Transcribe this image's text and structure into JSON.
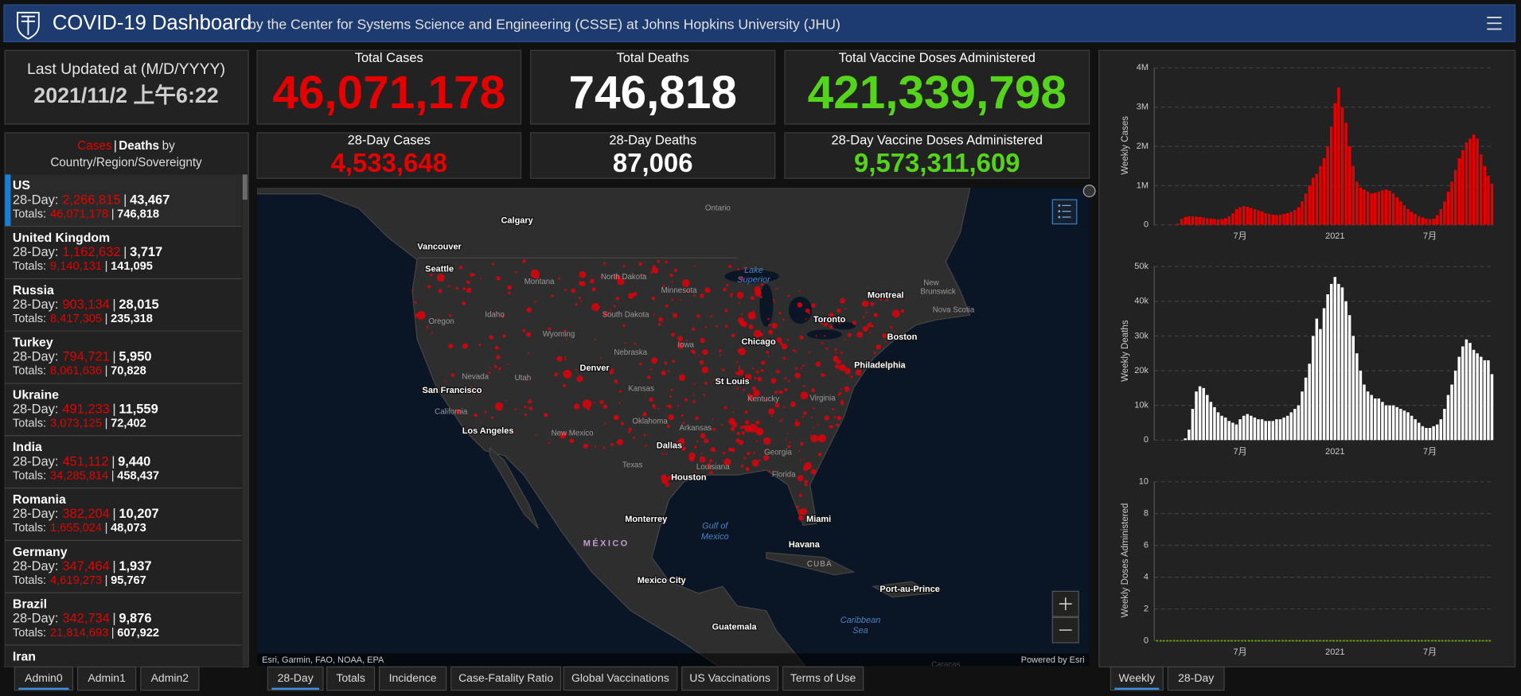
{
  "header": {
    "title": "COVID-19 Dashboard",
    "subtitle": "by the Center for Systems Science and Engineering (CSSE) at Johns Hopkins University (JHU)"
  },
  "last_updated": {
    "label": "Last Updated at (M/D/YYYY)",
    "value": "2021/11/2 上午6:22"
  },
  "stats": [
    {
      "label": "Total Cases",
      "value": "46,071,178"
    },
    {
      "label": "Total Deaths",
      "value": "746,818"
    },
    {
      "label": "Total Vaccine Doses Administered",
      "value": "421,339,798"
    },
    {
      "label": "28-Day Cases",
      "value": "4,533,648"
    },
    {
      "label": "28-Day Deaths",
      "value": "87,006"
    },
    {
      "label": "28-Day Vaccine Doses Administered",
      "value": "9,573,311,609"
    }
  ],
  "country_list": {
    "cases": "Cases",
    "separator": "|",
    "deaths": "Deaths",
    "by": "by",
    "region": "Country/Region/Sovereignty",
    "day28_label": "28-Day:",
    "totals_label": "Totals:",
    "countries": [
      {
        "name": "US",
        "day28_cases": "2,266,815",
        "day28_deaths": "43,467",
        "total_cases": "46,071,178",
        "total_deaths": "746,818"
      },
      {
        "name": "United Kingdom",
        "day28_cases": "1,162,632",
        "day28_deaths": "3,717",
        "total_cases": "9,140,131",
        "total_deaths": "141,095"
      },
      {
        "name": "Russia",
        "day28_cases": "903,134",
        "day28_deaths": "28,015",
        "total_cases": "8,417,305",
        "total_deaths": "235,318"
      },
      {
        "name": "Turkey",
        "day28_cases": "794,721",
        "day28_deaths": "5,950",
        "total_cases": "8,061,636",
        "total_deaths": "70,828"
      },
      {
        "name": "Ukraine",
        "day28_cases": "491,233",
        "day28_deaths": "11,559",
        "total_cases": "3,073,125",
        "total_deaths": "72,402"
      },
      {
        "name": "India",
        "day28_cases": "451,112",
        "day28_deaths": "9,440",
        "total_cases": "34,285,814",
        "total_deaths": "458,437"
      },
      {
        "name": "Romania",
        "day28_cases": "382,204",
        "day28_deaths": "10,207",
        "total_cases": "1,655,024",
        "total_deaths": "48,073"
      },
      {
        "name": "Germany",
        "day28_cases": "347,464",
        "day28_deaths": "1,937",
        "total_cases": "4,619,273",
        "total_deaths": "95,767"
      },
      {
        "name": "Brazil",
        "day28_cases": "342,734",
        "day28_deaths": "9,876",
        "total_cases": "21,814,693",
        "total_deaths": "607,922"
      },
      {
        "name": "Iran"
      }
    ]
  },
  "map": {
    "labels": [
      "Calgary",
      "Ontario",
      "Vancouver",
      "Seattle",
      "Montana",
      "North Dakota",
      "Minnesota",
      "Lake",
      "Superior",
      "Montreal",
      "New",
      "Brunswick",
      "Nova Scotia",
      "Toronto",
      "Boston",
      "Oregon",
      "Idaho",
      "South Dakota",
      "Wyoming",
      "Nebraska",
      "Chicago",
      "Iowa",
      "Philadelphia",
      "Nevada",
      "Utah",
      "Denver",
      "San Francisco",
      "Kansas",
      "St Louis",
      "Kentucky",
      "Virginia",
      "California",
      "Oklahoma",
      "Los Angeles",
      "New Mexico",
      "Arkansas",
      "Dallas",
      "Georgia",
      "Texas",
      "Louisiana",
      "Houston",
      "Florida",
      "Miami",
      "Monterrey",
      "Gulf of",
      "Mexico",
      "MÉXICO",
      "Havana",
      "CUBA",
      "Mexico City",
      "Port-au-Prince",
      "Caribbean",
      "Sea",
      "Guatemala",
      "Caracas"
    ],
    "attribution": "Esri, Garmin, FAO, NOAA, EPA",
    "powered_by": "Powered by Esri"
  },
  "tabs": {
    "left": [
      "Admin0",
      "Admin1",
      "Admin2"
    ],
    "middle": [
      "28-Day",
      "Totals",
      "Incidence",
      "Case-Fatality Ratio",
      "Global Vaccinations",
      "US Vaccinations",
      "Terms of Use"
    ],
    "right": [
      "Weekly",
      "28-Day"
    ]
  },
  "chart_data": [
    {
      "type": "bar",
      "y_label": "Weekly Cases",
      "color": "#e60000",
      "grid": true,
      "ylim": [
        0,
        4000000
      ],
      "yticks": [
        0,
        {
          "value": 1000000,
          "label": "1M"
        },
        {
          "value": 2000000,
          "label": "2M"
        },
        {
          "value": 3000000,
          "label": "3M"
        },
        {
          "value": 4000000,
          "label": "4M"
        }
      ],
      "categories": [
        null,
        null,
        null,
        null,
        null,
        null,
        null,
        null,
        null,
        null,
        null,
        null,
        null,
        null,
        null,
        null,
        null,
        null,
        null,
        null,
        null,
        null,
        null,
        "7月",
        null,
        null,
        null,
        null,
        null,
        null,
        null,
        null,
        null,
        null,
        null,
        null,
        null,
        null,
        null,
        null,
        null,
        null,
        null,
        null,
        null,
        null,
        null,
        null,
        null,
        "2021",
        null,
        null,
        null,
        null,
        null,
        null,
        null,
        null,
        null,
        null,
        null,
        null,
        null,
        null,
        null,
        null,
        null,
        null,
        null,
        null,
        null,
        null,
        null,
        null,
        null,
        "7月",
        null,
        null,
        null,
        null,
        null,
        null,
        null,
        null,
        null,
        null,
        null,
        null,
        null,
        null,
        null,
        null,
        null
      ],
      "values": [
        0,
        0,
        0,
        0,
        0,
        5000,
        30000,
        150000,
        200000,
        220000,
        220000,
        210000,
        200000,
        190000,
        170000,
        160000,
        150000,
        140000,
        150000,
        170000,
        220000,
        300000,
        400000,
        450000,
        480000,
        460000,
        430000,
        400000,
        370000,
        340000,
        300000,
        280000,
        260000,
        250000,
        260000,
        280000,
        300000,
        330000,
        380000,
        450000,
        600000,
        800000,
        1000000,
        1200000,
        1300000,
        1500000,
        1700000,
        2000000,
        2500000,
        3100000,
        3500000,
        3000000,
        2600000,
        2000000,
        1500000,
        1100000,
        950000,
        900000,
        850000,
        800000,
        820000,
        850000,
        880000,
        900000,
        870000,
        800000,
        700000,
        600000,
        500000,
        400000,
        330000,
        280000,
        220000,
        190000,
        160000,
        150000,
        160000,
        250000,
        400000,
        600000,
        850000,
        1100000,
        1400000,
        1700000,
        1900000,
        2100000,
        2200000,
        2300000,
        2200000,
        1800000,
        1500000,
        1250000,
        1050000
      ]
    },
    {
      "type": "bar",
      "y_label": "Weekly Deaths",
      "color": "#ffffff",
      "grid": true,
      "ylim": [
        0,
        50000
      ],
      "yticks": [
        0,
        {
          "value": 10000,
          "label": "10k"
        },
        {
          "value": 20000,
          "label": "20k"
        },
        {
          "value": 30000,
          "label": "30k"
        },
        {
          "value": 40000,
          "label": "40k"
        },
        {
          "value": 50000,
          "label": "50k"
        }
      ],
      "categories": [
        null,
        null,
        null,
        null,
        null,
        null,
        null,
        null,
        null,
        null,
        null,
        null,
        null,
        null,
        null,
        null,
        null,
        null,
        null,
        null,
        null,
        null,
        null,
        "7月",
        null,
        null,
        null,
        null,
        null,
        null,
        null,
        null,
        null,
        null,
        null,
        null,
        null,
        null,
        null,
        null,
        null,
        null,
        null,
        null,
        null,
        null,
        null,
        null,
        null,
        "2021",
        null,
        null,
        null,
        null,
        null,
        null,
        null,
        null,
        null,
        null,
        null,
        null,
        null,
        null,
        null,
        null,
        null,
        null,
        null,
        null,
        null,
        null,
        null,
        null,
        null,
        "7月",
        null,
        null,
        null,
        null,
        null,
        null,
        null,
        null,
        null,
        null,
        null,
        null,
        null,
        null,
        null,
        null,
        null
      ],
      "values": [
        0,
        0,
        0,
        0,
        0,
        0,
        0,
        50,
        500,
        3000,
        9000,
        14000,
        15500,
        15000,
        13000,
        11000,
        9500,
        8000,
        7000,
        6500,
        5500,
        5000,
        4500,
        6000,
        7000,
        7500,
        7000,
        6500,
        6000,
        6000,
        5500,
        5500,
        5500,
        6000,
        6000,
        6500,
        7000,
        8000,
        9000,
        10000,
        14000,
        18000,
        22000,
        30000,
        35000,
        32000,
        38000,
        42000,
        45000,
        47000,
        45000,
        44000,
        40000,
        36000,
        30000,
        25000,
        20000,
        16000,
        14000,
        13000,
        12000,
        12000,
        11000,
        10000,
        10000,
        10000,
        9500,
        9000,
        8500,
        8000,
        7000,
        6000,
        5000,
        4000,
        3500,
        3500,
        4000,
        4500,
        6000,
        9000,
        13000,
        16000,
        20000,
        24000,
        27000,
        29000,
        28000,
        26000,
        25000,
        24000,
        23000,
        23000,
        19000
      ]
    },
    {
      "type": "line",
      "y_label": "Weekly Doses Administered",
      "color": "#70a800",
      "grid": true,
      "ylim": [
        0,
        10
      ],
      "yticks": [
        0,
        2,
        4,
        6,
        8,
        10
      ],
      "categories": [
        null,
        null,
        null,
        null,
        null,
        null,
        null,
        null,
        null,
        null,
        null,
        null,
        null,
        null,
        null,
        null,
        null,
        null,
        null,
        null,
        null,
        null,
        null,
        "7月",
        null,
        null,
        null,
        null,
        null,
        null,
        null,
        null,
        null,
        null,
        null,
        null,
        null,
        null,
        null,
        null,
        null,
        null,
        null,
        null,
        null,
        null,
        null,
        null,
        null,
        "2021",
        null,
        null,
        null,
        null,
        null,
        null,
        null,
        null,
        null,
        null,
        null,
        null,
        null,
        null,
        null,
        null,
        null,
        null,
        null,
        null,
        null,
        null,
        null,
        null,
        null,
        "7月",
        null,
        null,
        null,
        null,
        null,
        null,
        null,
        null,
        null,
        null,
        null,
        null,
        null,
        null,
        null,
        null,
        null
      ],
      "values": [
        0,
        0,
        0,
        0,
        0,
        0,
        0,
        0,
        0,
        0,
        0,
        0,
        0,
        0,
        0,
        0,
        0,
        0,
        0,
        0,
        0,
        0,
        0,
        0,
        0,
        0,
        0,
        0,
        0,
        0,
        0,
        0,
        0,
        0,
        0,
        0,
        0,
        0,
        0,
        0,
        0,
        0,
        0,
        0,
        0,
        0,
        0,
        0,
        0,
        0,
        0,
        0,
        0,
        0,
        0,
        0,
        0,
        0,
        0,
        0,
        0,
        0,
        0,
        0,
        0,
        0,
        0,
        0,
        0,
        0,
        0,
        0,
        0,
        0,
        0,
        0,
        0,
        0,
        0,
        0,
        0,
        0,
        0,
        0,
        0,
        0,
        0,
        0,
        0,
        0,
        0,
        0,
        0
      ]
    }
  ]
}
